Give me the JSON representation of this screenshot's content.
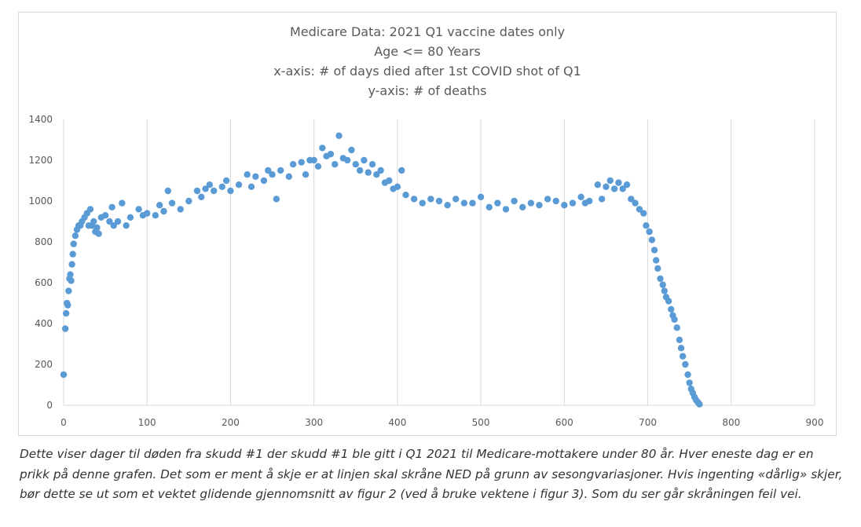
{
  "chart_data": {
    "type": "scatter",
    "title_lines": [
      "Medicare Data: 2021 Q1 vaccine dates only",
      "Age <= 80 Years",
      "x-axis: # of days died after 1st COVID shot of Q1",
      "y-axis: # of deaths"
    ],
    "xlim": [
      0,
      900
    ],
    "ylim": [
      0,
      1400
    ],
    "xticks": [
      0,
      100,
      200,
      300,
      400,
      500,
      600,
      700,
      800,
      900
    ],
    "yticks": [
      0,
      200,
      400,
      600,
      800,
      1000,
      1200,
      1400
    ],
    "grid": "vertical",
    "marker_color": "#5b9bd5",
    "series": [
      {
        "points": [
          [
            0,
            150
          ],
          [
            2,
            375
          ],
          [
            3,
            450
          ],
          [
            4,
            500
          ],
          [
            5,
            490
          ],
          [
            6,
            560
          ],
          [
            7,
            620
          ],
          [
            8,
            640
          ],
          [
            9,
            610
          ],
          [
            10,
            690
          ],
          [
            11,
            740
          ],
          [
            12,
            790
          ],
          [
            14,
            830
          ],
          [
            16,
            860
          ],
          [
            18,
            880
          ],
          [
            20,
            880
          ],
          [
            22,
            900
          ],
          [
            25,
            920
          ],
          [
            28,
            940
          ],
          [
            30,
            880
          ],
          [
            32,
            960
          ],
          [
            34,
            880
          ],
          [
            36,
            900
          ],
          [
            38,
            850
          ],
          [
            40,
            870
          ],
          [
            42,
            840
          ],
          [
            45,
            920
          ],
          [
            50,
            930
          ],
          [
            55,
            900
          ],
          [
            58,
            970
          ],
          [
            60,
            880
          ],
          [
            65,
            900
          ],
          [
            70,
            990
          ],
          [
            75,
            880
          ],
          [
            80,
            920
          ],
          [
            90,
            960
          ],
          [
            95,
            930
          ],
          [
            100,
            940
          ],
          [
            110,
            930
          ],
          [
            115,
            980
          ],
          [
            120,
            950
          ],
          [
            125,
            1050
          ],
          [
            130,
            990
          ],
          [
            140,
            960
          ],
          [
            150,
            1000
          ],
          [
            160,
            1050
          ],
          [
            165,
            1020
          ],
          [
            170,
            1060
          ],
          [
            175,
            1080
          ],
          [
            180,
            1050
          ],
          [
            190,
            1070
          ],
          [
            195,
            1100
          ],
          [
            200,
            1050
          ],
          [
            210,
            1080
          ],
          [
            220,
            1130
          ],
          [
            225,
            1070
          ],
          [
            230,
            1120
          ],
          [
            240,
            1100
          ],
          [
            245,
            1150
          ],
          [
            250,
            1130
          ],
          [
            255,
            1010
          ],
          [
            260,
            1150
          ],
          [
            270,
            1120
          ],
          [
            275,
            1180
          ],
          [
            285,
            1190
          ],
          [
            290,
            1130
          ],
          [
            295,
            1200
          ],
          [
            300,
            1200
          ],
          [
            305,
            1170
          ],
          [
            310,
            1260
          ],
          [
            315,
            1220
          ],
          [
            320,
            1230
          ],
          [
            325,
            1180
          ],
          [
            330,
            1320
          ],
          [
            335,
            1210
          ],
          [
            340,
            1200
          ],
          [
            345,
            1250
          ],
          [
            350,
            1180
          ],
          [
            355,
            1150
          ],
          [
            360,
            1200
          ],
          [
            365,
            1140
          ],
          [
            370,
            1180
          ],
          [
            375,
            1130
          ],
          [
            380,
            1150
          ],
          [
            385,
            1090
          ],
          [
            390,
            1100
          ],
          [
            395,
            1060
          ],
          [
            400,
            1070
          ],
          [
            405,
            1150
          ],
          [
            410,
            1030
          ],
          [
            420,
            1010
          ],
          [
            430,
            990
          ],
          [
            440,
            1010
          ],
          [
            450,
            1000
          ],
          [
            460,
            980
          ],
          [
            470,
            1010
          ],
          [
            480,
            990
          ],
          [
            490,
            990
          ],
          [
            500,
            1020
          ],
          [
            510,
            970
          ],
          [
            520,
            990
          ],
          [
            530,
            960
          ],
          [
            540,
            1000
          ],
          [
            550,
            970
          ],
          [
            560,
            990
          ],
          [
            570,
            980
          ],
          [
            580,
            1010
          ],
          [
            590,
            1000
          ],
          [
            600,
            980
          ],
          [
            610,
            990
          ],
          [
            620,
            1020
          ],
          [
            625,
            990
          ],
          [
            630,
            1000
          ],
          [
            640,
            1080
          ],
          [
            645,
            1010
          ],
          [
            650,
            1070
          ],
          [
            655,
            1100
          ],
          [
            660,
            1060
          ],
          [
            665,
            1090
          ],
          [
            670,
            1060
          ],
          [
            675,
            1080
          ],
          [
            680,
            1010
          ],
          [
            685,
            990
          ],
          [
            690,
            960
          ],
          [
            695,
            940
          ],
          [
            698,
            880
          ],
          [
            702,
            850
          ],
          [
            705,
            810
          ],
          [
            708,
            760
          ],
          [
            710,
            710
          ],
          [
            712,
            670
          ],
          [
            715,
            620
          ],
          [
            718,
            590
          ],
          [
            720,
            560
          ],
          [
            722,
            530
          ],
          [
            725,
            510
          ],
          [
            728,
            470
          ],
          [
            730,
            440
          ],
          [
            732,
            420
          ],
          [
            735,
            380
          ],
          [
            738,
            320
          ],
          [
            740,
            280
          ],
          [
            742,
            240
          ],
          [
            745,
            200
          ],
          [
            748,
            150
          ],
          [
            750,
            110
          ],
          [
            752,
            80
          ],
          [
            754,
            60
          ],
          [
            756,
            40
          ],
          [
            758,
            25
          ],
          [
            760,
            15
          ],
          [
            762,
            5
          ]
        ]
      }
    ]
  },
  "caption": "Dette viser dager til døden fra skudd #1 der skudd #1 ble gitt i Q1 2021 til Medicare-mottakere under 80 år. Hver eneste dag er en prikk på denne grafen. Det som er ment å skje er at linjen skal skråne NED på grunn av sesongvariasjoner. Hvis ingenting «dårlig» skjer, bør dette se ut som et vektet glidende gjennomsnitt av figur 2 (ved å bruke vektene i figur 3). Som du ser går skråningen feil vei."
}
